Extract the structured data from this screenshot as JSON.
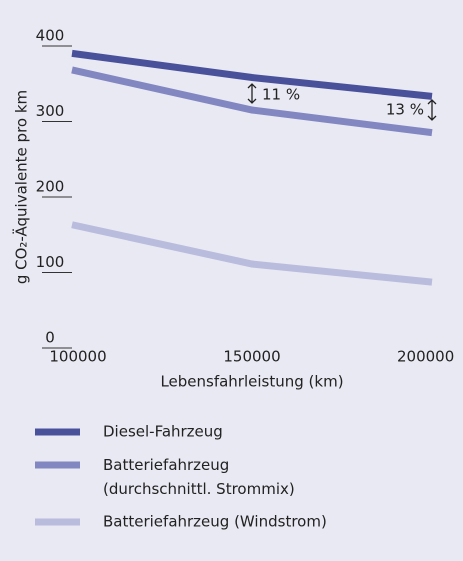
{
  "chart_data": {
    "type": "line",
    "x": [
      100000,
      150000,
      200000
    ],
    "series": [
      {
        "name": "Diesel-Fahrzeug",
        "color": "#4a519b",
        "values": [
          377,
          345,
          320
        ]
      },
      {
        "name": "Batteriefahrzeug\n(durchschnittl. Strommix)",
        "color": "#8287c1",
        "values": [
          355,
          302,
          272
        ]
      },
      {
        "name": "Batteriefahrzeug (Windstrom)",
        "color": "#b9bcdd",
        "values": [
          150,
          98,
          74
        ]
      }
    ],
    "xlim": [
      100000,
      200000
    ],
    "xticks": [
      100000,
      150000,
      200000
    ],
    "ylim": [
      0,
      400
    ],
    "yticks": [
      0,
      100,
      200,
      300,
      400
    ],
    "xlabel": "Lebensfahrleistung (km)",
    "ylabel": "g CO₂-Äquivalente pro km",
    "annotations": [
      "11 %",
      "13 %"
    ]
  }
}
